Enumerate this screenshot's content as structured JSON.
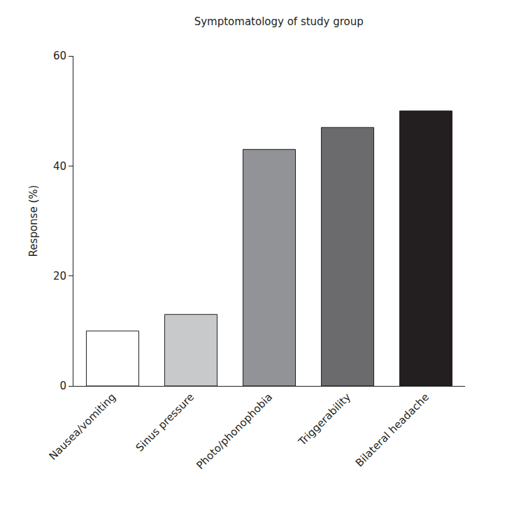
{
  "chart_data": {
    "type": "bar",
    "title": "Symptomatology of study group",
    "y_label": "Response (%)",
    "categories": [
      "Nausea/vomiting",
      "Sinus pressure",
      "Photo/phonophobia",
      "Triggerability",
      "Bilateral headache"
    ],
    "values": [
      10,
      13,
      43,
      47,
      50
    ],
    "colors": [
      "#ffffff",
      "#c8c9cb",
      "#929396",
      "#6b6b6e",
      "#231f20"
    ],
    "ylim": [
      0,
      60
    ],
    "yticks": [
      0,
      20,
      40,
      60
    ],
    "grid": false
  }
}
